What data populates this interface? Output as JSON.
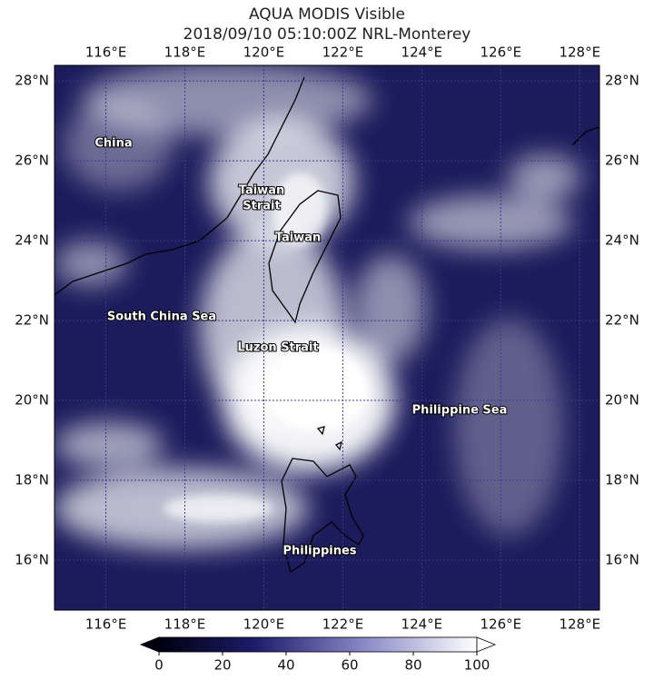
{
  "header": {
    "title": "AQUA MODIS Visible",
    "subtitle": "2018/09/10 05:10:00Z NRL-Monterey"
  },
  "map": {
    "xlim": [
      114.7,
      128.5
    ],
    "ylim": [
      14.75,
      28.39
    ],
    "lon_ticks": [
      {
        "value": 116,
        "label": "116°E"
      },
      {
        "value": 118,
        "label": "118°E"
      },
      {
        "value": 120,
        "label": "120°E"
      },
      {
        "value": 122,
        "label": "122°E"
      },
      {
        "value": 124,
        "label": "124°E"
      },
      {
        "value": 126,
        "label": "126°E"
      },
      {
        "value": 128,
        "label": "128°E"
      }
    ],
    "lat_ticks": [
      {
        "value": 28,
        "label": "28°N"
      },
      {
        "value": 26,
        "label": "26°N"
      },
      {
        "value": 24,
        "label": "24°N"
      },
      {
        "value": 22,
        "label": "22°N"
      },
      {
        "value": 20,
        "label": "20°N"
      },
      {
        "value": 18,
        "label": "18°N"
      },
      {
        "value": 16,
        "label": "16°N"
      }
    ],
    "places": [
      {
        "lines": [
          "China"
        ]
      },
      {
        "lines": [
          "Taiwan",
          "Strait"
        ]
      },
      {
        "lines": [
          "Taiwan"
        ]
      },
      {
        "lines": [
          "South China Sea"
        ]
      },
      {
        "lines": [
          "Luzon Strait"
        ]
      },
      {
        "lines": [
          "Philippine Sea"
        ]
      },
      {
        "lines": [
          "Philippines"
        ]
      }
    ]
  },
  "colorbar": {
    "range": [
      0,
      100
    ],
    "ticks": [
      0,
      20,
      40,
      60,
      80,
      100
    ]
  }
}
